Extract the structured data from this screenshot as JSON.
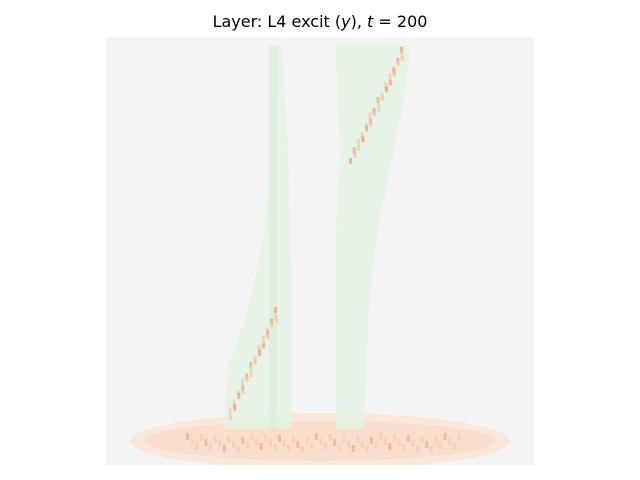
{
  "chart_data": {
    "type": "heatmap",
    "title": "Layer: L4 excit (y), t = 200",
    "title_parts": {
      "prefix": "Layer: L4 excit (",
      "var": "y",
      "mid": "), ",
      "t_var": "t",
      "equals": " = 200"
    },
    "xlabel": "",
    "ylabel": "",
    "axes_visible": false,
    "grid": false,
    "legend": "none",
    "colors": {
      "background": "#f4f4f4",
      "low_activity": "#e3f2e3",
      "high_activity": "#f6c7a8",
      "peak_activity": "#f0a47a"
    },
    "description_regions": [
      {
        "name": "left-leg",
        "activity": "low"
      },
      {
        "name": "right-leg",
        "activity": "low"
      },
      {
        "name": "base-ellipse",
        "activity": "high"
      }
    ]
  }
}
